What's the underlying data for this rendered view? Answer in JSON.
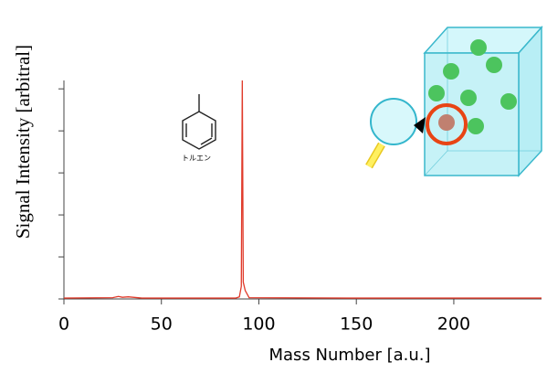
{
  "chart_data": {
    "type": "line",
    "x_label": "Mass Number [a.u.]",
    "y_label": "Signal Intensity [arbitral]",
    "annotation": "トルエン",
    "x": [
      0,
      25,
      28,
      30,
      33,
      40,
      88,
      90,
      91,
      91.5,
      92,
      93,
      95,
      150,
      245
    ],
    "series": [
      {
        "color": "#e03a2a",
        "values": [
          0.02,
          0.03,
          0.06,
          0.04,
          0.05,
          0.02,
          0.02,
          0.05,
          0.3,
          5.2,
          0.4,
          0.2,
          0.03,
          0.02,
          0.02
        ]
      }
    ],
    "xlim": [
      0,
      245
    ],
    "xticks": [
      0,
      50,
      100,
      150,
      200
    ],
    "ylim": [
      0,
      5.2
    ],
    "yticks": [
      0,
      1,
      2,
      3,
      4,
      5
    ]
  }
}
